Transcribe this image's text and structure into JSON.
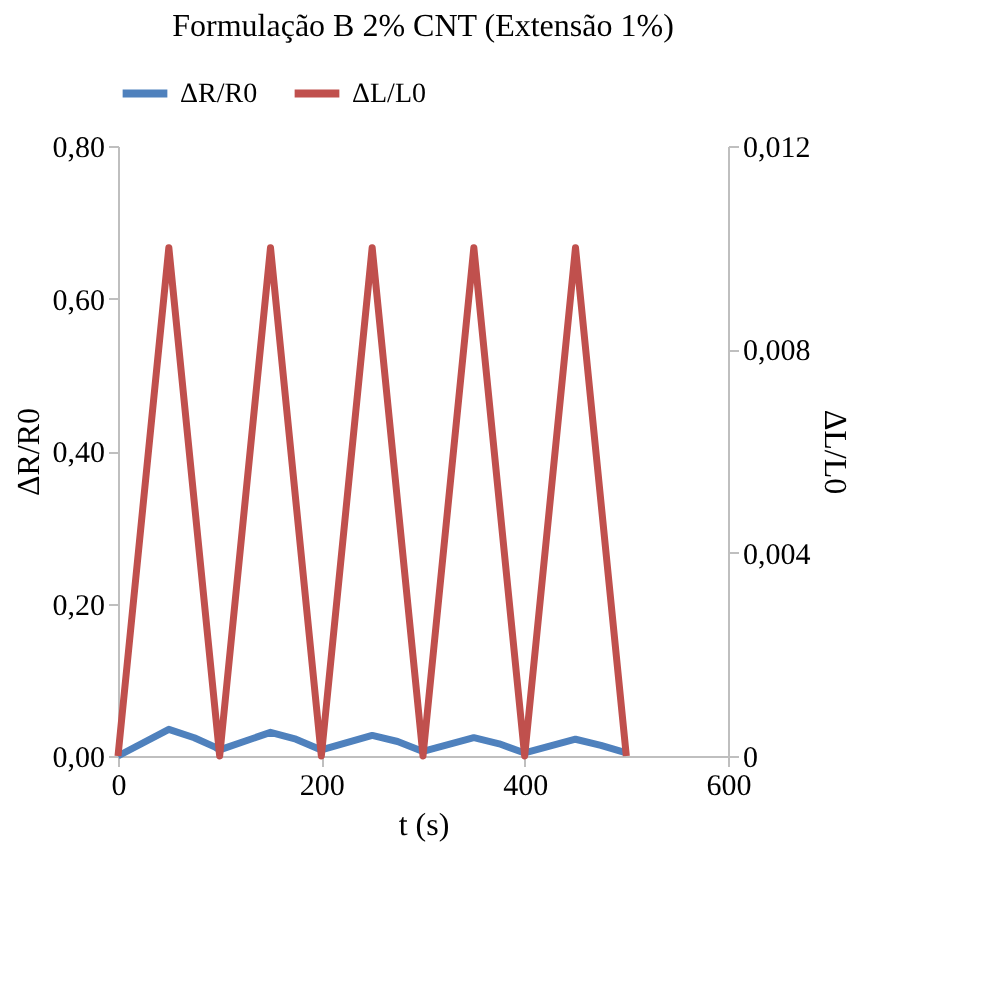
{
  "chart_data": {
    "type": "line",
    "title": "Formulação B 2% CNT (Extensão 1%)",
    "xlabel": "t (s)",
    "ylabel": "ΔR/R0",
    "y2label": "ΔL/L0",
    "xlim": [
      0,
      600
    ],
    "xticks": [
      0,
      200,
      400,
      600
    ],
    "ylim": [
      0,
      0.8
    ],
    "yticks": [
      {
        "value": 0,
        "label": "0,00"
      },
      {
        "value": 0.2,
        "label": "0,20"
      },
      {
        "value": 0.4,
        "label": "0,40"
      },
      {
        "value": 0.6,
        "label": "0,60"
      },
      {
        "value": 0.8,
        "label": "0,80"
      }
    ],
    "y2lim": [
      0,
      0.012
    ],
    "y2ticks": [
      {
        "value": 0,
        "label": "0"
      },
      {
        "value": 0.004,
        "label": "0,004"
      },
      {
        "value": 0.008,
        "label": "0,008"
      },
      {
        "value": 0.012,
        "label": "0,012"
      }
    ],
    "grid": false,
    "legend": "top",
    "marker": "none",
    "line_style": "solid",
    "series": [
      {
        "name": "ΔR/R0",
        "color": "#4f81bd",
        "x": [
          0,
          50,
          75,
          95,
          100,
          150,
          175,
          200,
          250,
          275,
          300,
          350,
          375,
          400,
          450,
          475,
          500
        ],
        "values": [
          0,
          0.035,
          0.024,
          0.012,
          0.008,
          0.031,
          0.022,
          0.008,
          0.027,
          0.019,
          0.006,
          0.024,
          0.016,
          0.004,
          0.022,
          0.014,
          0.004
        ]
      },
      {
        "name": "ΔL/L0",
        "color": "#c0504d",
        "axis": "y2",
        "x": [
          0,
          50,
          100,
          150,
          200,
          250,
          300,
          350,
          400,
          450,
          500
        ],
        "values": [
          0,
          0.01,
          0,
          0.01,
          0,
          0.01,
          0,
          0.01,
          0,
          0.01,
          0
        ]
      }
    ]
  }
}
